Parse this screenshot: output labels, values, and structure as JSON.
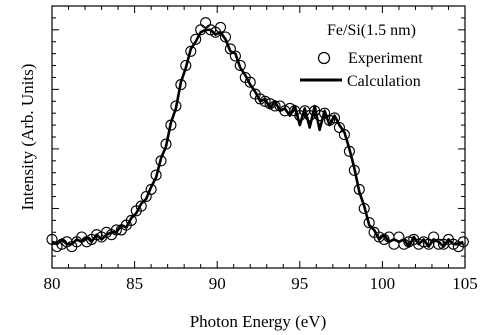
{
  "chart_data": {
    "type": "line",
    "annotation": "Fe/Si(1.5 nm)",
    "xlabel": "Photon Energy (eV)",
    "ylabel": "Intensity (Arb. Units)",
    "xlim": [
      80,
      105
    ],
    "ylim": [
      0,
      1.1
    ],
    "xticks": [
      80,
      85,
      90,
      95,
      100,
      105
    ],
    "y_tick_labels_shown": false,
    "grid": false,
    "legend_position": "top-right",
    "legend": [
      {
        "label": "Experiment",
        "marker": "open-circle"
      },
      {
        "label": "Calculation",
        "marker": "thick-line"
      }
    ],
    "series": [
      {
        "name": "Experiment",
        "style": "open-circle",
        "x": [
          80.0,
          80.3,
          80.6,
          80.9,
          81.2,
          81.5,
          81.8,
          82.1,
          82.4,
          82.7,
          83.0,
          83.3,
          83.6,
          83.9,
          84.2,
          84.5,
          84.8,
          85.1,
          85.4,
          85.7,
          86.0,
          86.3,
          86.6,
          86.9,
          87.2,
          87.5,
          87.8,
          88.1,
          88.4,
          88.7,
          89.0,
          89.3,
          89.6,
          89.9,
          90.2,
          90.5,
          90.8,
          91.1,
          91.4,
          91.7,
          92.0,
          92.3,
          92.6,
          92.9,
          93.2,
          93.5,
          93.8,
          94.1,
          94.4,
          94.7,
          95.0,
          95.3,
          95.6,
          95.9,
          96.2,
          96.5,
          96.8,
          97.1,
          97.4,
          97.7,
          98.0,
          98.3,
          98.6,
          98.9,
          99.2,
          99.5,
          99.8,
          100.1,
          100.4,
          100.7,
          101.0,
          101.3,
          101.6,
          101.9,
          102.2,
          102.5,
          102.8,
          103.1,
          103.4,
          103.7,
          104.0,
          104.3,
          104.6,
          104.9
        ],
        "y": [
          0.12,
          0.09,
          0.1,
          0.11,
          0.09,
          0.11,
          0.13,
          0.11,
          0.12,
          0.14,
          0.13,
          0.15,
          0.14,
          0.16,
          0.16,
          0.18,
          0.2,
          0.24,
          0.26,
          0.3,
          0.33,
          0.39,
          0.45,
          0.52,
          0.6,
          0.68,
          0.77,
          0.85,
          0.91,
          0.96,
          1.0,
          1.03,
          1.0,
          0.99,
          1.01,
          0.97,
          0.92,
          0.89,
          0.85,
          0.8,
          0.78,
          0.73,
          0.71,
          0.7,
          0.69,
          0.68,
          0.68,
          0.66,
          0.67,
          0.66,
          0.64,
          0.66,
          0.64,
          0.66,
          0.64,
          0.65,
          0.62,
          0.63,
          0.59,
          0.56,
          0.49,
          0.41,
          0.33,
          0.25,
          0.19,
          0.15,
          0.13,
          0.12,
          0.13,
          0.1,
          0.13,
          0.1,
          0.11,
          0.12,
          0.1,
          0.11,
          0.1,
          0.13,
          0.1,
          0.1,
          0.12,
          0.1,
          0.09,
          0.11
        ]
      },
      {
        "name": "Calculation",
        "style": "thick-line",
        "x": [
          80.0,
          80.3,
          80.6,
          80.9,
          81.2,
          81.5,
          81.8,
          82.1,
          82.4,
          82.7,
          83.0,
          83.3,
          83.6,
          83.9,
          84.2,
          84.5,
          84.8,
          85.1,
          85.4,
          85.7,
          86.0,
          86.3,
          86.6,
          86.9,
          87.2,
          87.5,
          87.8,
          88.1,
          88.4,
          88.7,
          89.0,
          89.3,
          89.6,
          89.9,
          90.2,
          90.5,
          90.8,
          91.1,
          91.4,
          91.7,
          92.0,
          92.3,
          92.6,
          92.9,
          93.2,
          93.5,
          93.8,
          94.1,
          94.4,
          94.7,
          95.0,
          95.3,
          95.6,
          95.9,
          96.2,
          96.5,
          96.8,
          97.1,
          97.4,
          97.7,
          98.0,
          98.3,
          98.6,
          98.9,
          99.2,
          99.5,
          99.8,
          100.1,
          100.4,
          100.7,
          101.0,
          101.3,
          101.6,
          101.9,
          102.2,
          102.5,
          102.8,
          103.1,
          103.4,
          103.7,
          104.0,
          104.3,
          104.6,
          104.9
        ],
        "y": [
          0.11,
          0.1,
          0.12,
          0.1,
          0.1,
          0.12,
          0.11,
          0.13,
          0.11,
          0.14,
          0.12,
          0.14,
          0.15,
          0.15,
          0.18,
          0.17,
          0.21,
          0.23,
          0.27,
          0.29,
          0.34,
          0.38,
          0.46,
          0.51,
          0.61,
          0.67,
          0.78,
          0.84,
          0.92,
          0.95,
          0.99,
          1.0,
          1.0,
          0.98,
          0.99,
          0.96,
          0.91,
          0.9,
          0.84,
          0.81,
          0.77,
          0.74,
          0.7,
          0.71,
          0.67,
          0.7,
          0.66,
          0.67,
          0.64,
          0.68,
          0.6,
          0.67,
          0.59,
          0.68,
          0.58,
          0.66,
          0.6,
          0.64,
          0.6,
          0.57,
          0.5,
          0.42,
          0.32,
          0.26,
          0.18,
          0.16,
          0.12,
          0.14,
          0.11,
          0.12,
          0.11,
          0.12,
          0.09,
          0.13,
          0.1,
          0.12,
          0.09,
          0.12,
          0.11,
          0.09,
          0.12,
          0.1,
          0.1,
          0.11
        ]
      }
    ]
  }
}
